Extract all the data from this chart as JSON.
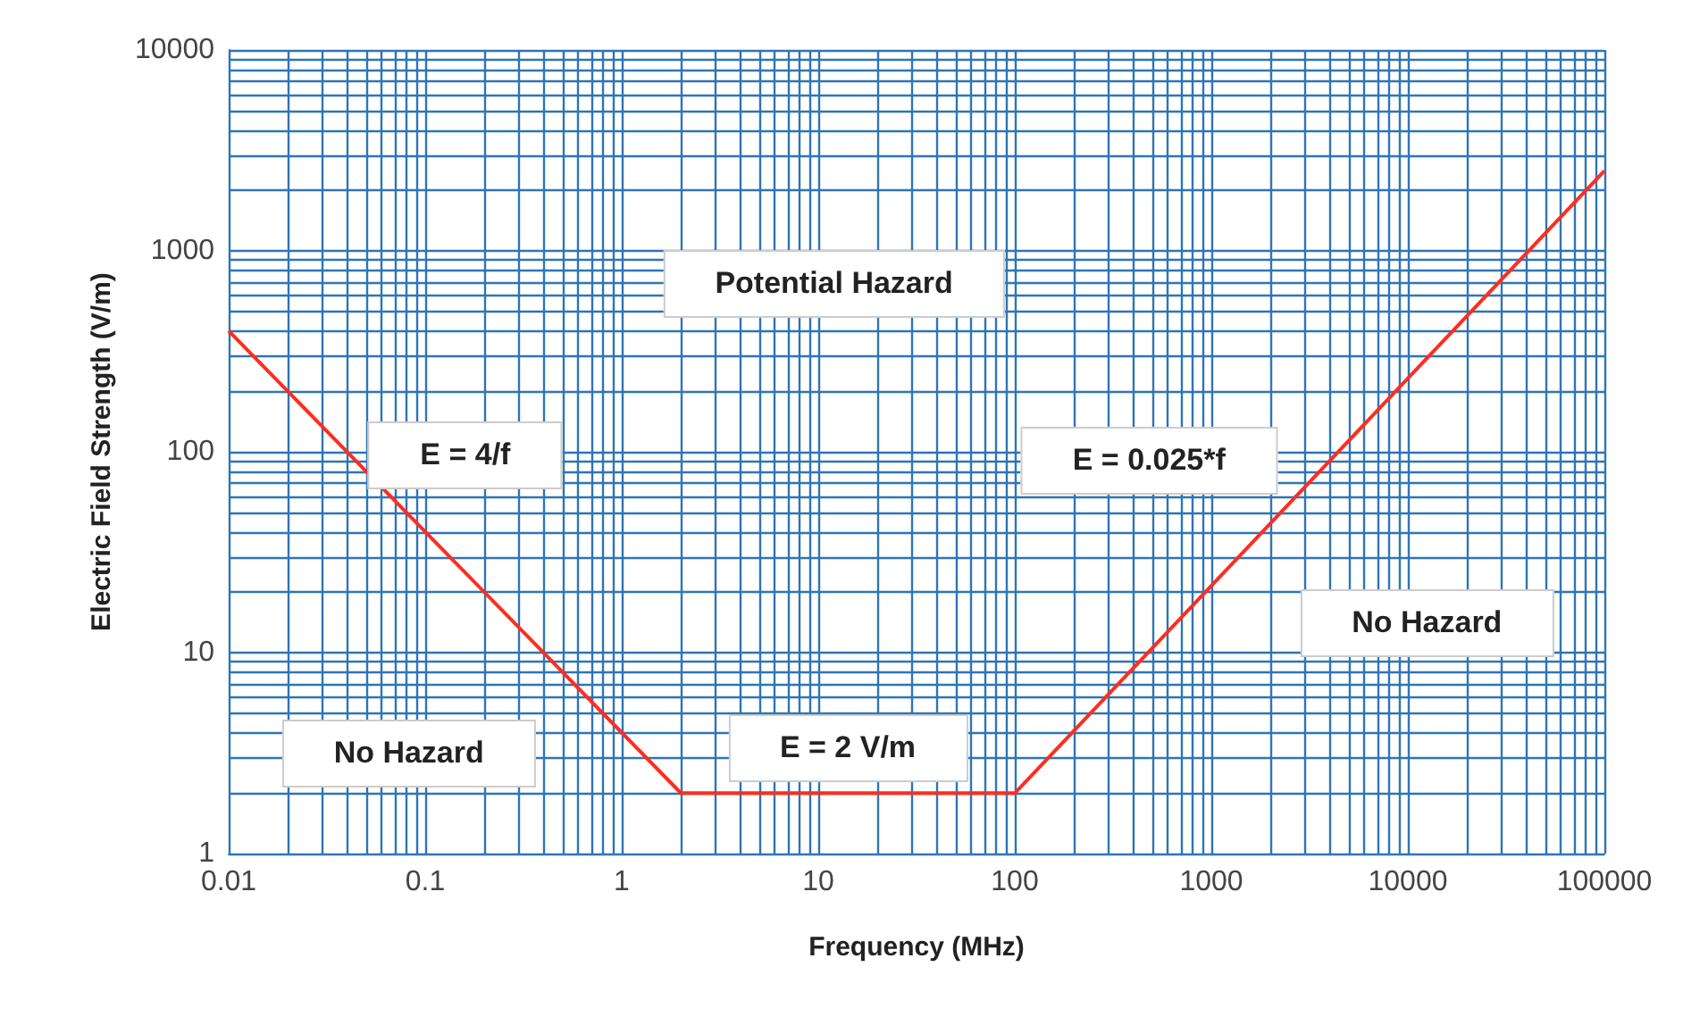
{
  "chart_data": {
    "type": "line",
    "xlabel": "Frequency (MHz)",
    "ylabel": "Electric Field Strength (V/m)",
    "x": [
      0.01,
      2,
      100,
      100000
    ],
    "series": [
      {
        "color": "#ff2d1f",
        "values": [
          400,
          2,
          2,
          2500
        ]
      }
    ],
    "log": "xy",
    "xlim": [
      0.01,
      100000
    ],
    "ylim": [
      1,
      10000
    ],
    "xticks": [
      0.01,
      0.1,
      1,
      10,
      100,
      1000,
      10000,
      100000
    ],
    "yticks": [
      1,
      10,
      100,
      1000,
      10000
    ],
    "grid": true,
    "marker": "none",
    "line_style": "solid",
    "annotations": [
      "Potential Hazard",
      "E = 4/f",
      "E = 0.025*f",
      "No Hazard",
      "No Hazard",
      "E = 2 V/m"
    ]
  }
}
